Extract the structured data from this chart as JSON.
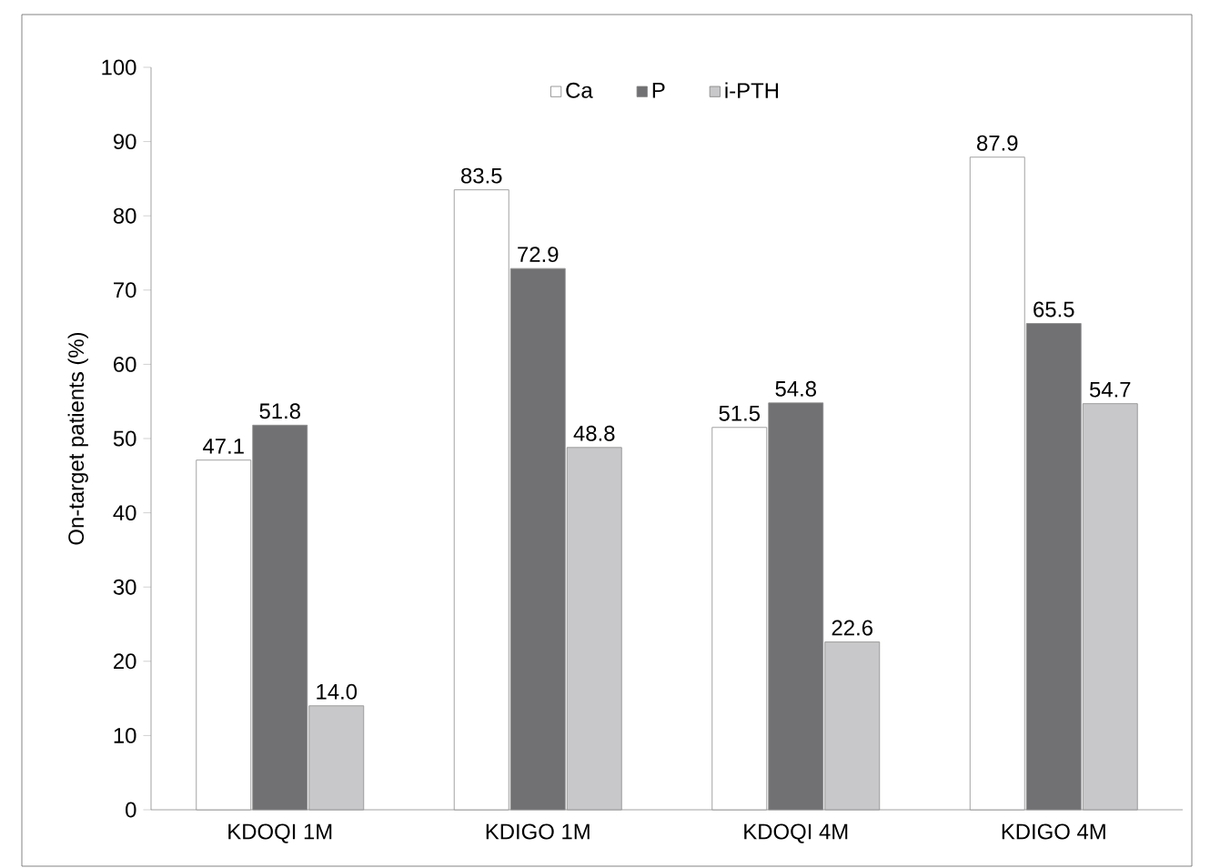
{
  "chart_data": {
    "type": "bar",
    "ylabel": "On-target patients (%)",
    "categories": [
      "KDOQI 1M",
      "KDIGO 1M",
      "KDOQI 4M",
      "KDIGO 4M"
    ],
    "series": [
      {
        "name": "Ca",
        "color": "#ffffff",
        "values": [
          47.1,
          83.5,
          51.5,
          87.9
        ],
        "value_labels": [
          "47.1",
          "83.5",
          "51.5",
          "87.9"
        ]
      },
      {
        "name": "P",
        "color": "#717174",
        "values": [
          51.8,
          72.9,
          54.8,
          65.5
        ],
        "value_labels": [
          "51.8",
          "72.9",
          "54.8",
          "65.5"
        ]
      },
      {
        "name": "i-PTH",
        "color": "#c8c8ca",
        "values": [
          14.0,
          48.8,
          22.6,
          54.7
        ],
        "value_labels": [
          "14.0",
          "48.8",
          "22.6",
          "54.7"
        ]
      }
    ],
    "ylim": [
      0,
      100
    ],
    "yticks": [
      0,
      10,
      20,
      30,
      40,
      50,
      60,
      70,
      80,
      90,
      100
    ],
    "grid": false,
    "legend": "top"
  }
}
